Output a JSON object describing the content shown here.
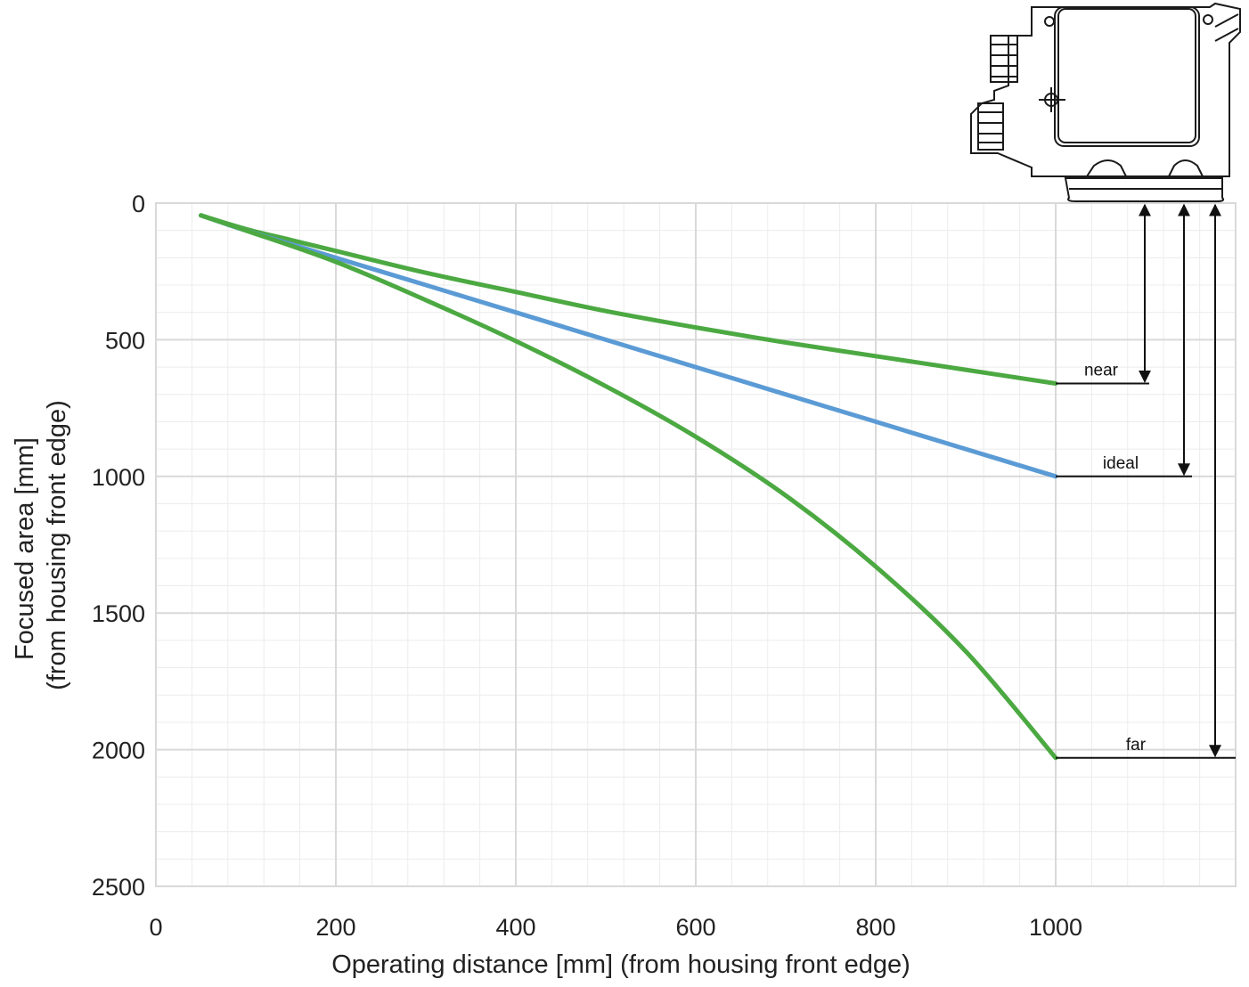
{
  "chart_data": {
    "type": "line",
    "xlabel": "Operating distance [mm] (from housing front edge)",
    "ylabel_line1": "Focused area [mm]",
    "ylabel_line2": "(from housing front edge)",
    "xlim": [
      0,
      1200
    ],
    "ylim": [
      0,
      2500
    ],
    "y_inverted": true,
    "grid": true,
    "x_ticks": [
      0,
      200,
      400,
      600,
      800,
      1000
    ],
    "y_ticks": [
      0,
      500,
      1000,
      1500,
      2000,
      2500
    ],
    "series": [
      {
        "color": "#4ca942",
        "x": [
          50,
          100,
          150,
          200,
          300,
          400,
          500,
          600,
          700,
          800,
          900,
          1000
        ],
        "y": [
          45,
          95,
          135,
          175,
          255,
          325,
          395,
          455,
          510,
          560,
          610,
          660
        ]
      },
      {
        "color": "#5b9bd5",
        "x": [
          50,
          100,
          200,
          300,
          400,
          500,
          600,
          700,
          800,
          900,
          1000
        ],
        "y": [
          45,
          100,
          200,
          300,
          400,
          500,
          600,
          700,
          800,
          900,
          1000
        ]
      },
      {
        "color": "#4ca942",
        "x": [
          50,
          100,
          200,
          300,
          400,
          500,
          600,
          700,
          800,
          900,
          1000
        ],
        "y": [
          45,
          100,
          215,
          355,
          505,
          670,
          855,
          1070,
          1330,
          1640,
          2030
        ]
      }
    ],
    "markers": [
      {
        "label": "near",
        "value": 660
      },
      {
        "label": "ideal",
        "value": 1000
      },
      {
        "label": "far",
        "value": 2030
      }
    ]
  },
  "device_icon": "sensor-housing-icon"
}
